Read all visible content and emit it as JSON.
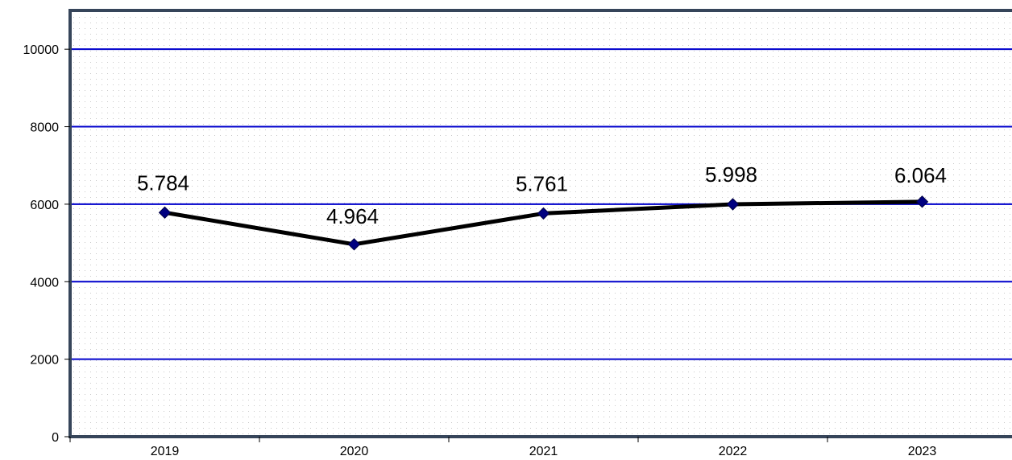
{
  "chart_data": {
    "type": "line",
    "title": "",
    "xlabel": "",
    "ylabel": "",
    "categories": [
      "2019",
      "2020",
      "2021",
      "2022",
      "2023"
    ],
    "series": [
      {
        "values": [
          5784,
          4964,
          5761,
          5998,
          6064
        ]
      }
    ],
    "data_labels": [
      "5.784",
      "4.964",
      "5.761",
      "5.998",
      "6.064"
    ],
    "ylim": [
      0,
      11000
    ],
    "y_ticks": [
      0,
      2000,
      4000,
      6000,
      8000,
      10000
    ],
    "y_tick_labels": [
      "0",
      "2000",
      "4000",
      "6000",
      "8000",
      "10000"
    ],
    "grid": true,
    "legend": "none"
  },
  "colors": {
    "plot_background": "#ffffff",
    "plot_dots": "#c8c8c8",
    "gridline": "#0000cc",
    "axis": "#36455a",
    "line": "#000000",
    "marker": "#000080"
  }
}
